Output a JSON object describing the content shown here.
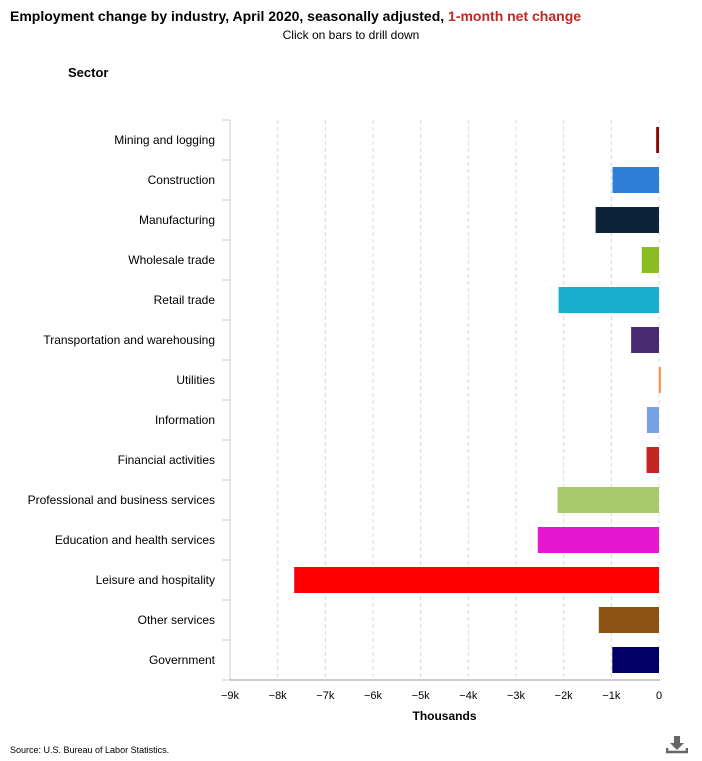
{
  "chart_data": {
    "type": "bar",
    "orientation": "horizontal",
    "title": "Employment change by industry, April 2020, seasonally adjusted,",
    "title_highlight": "1-month net change",
    "subtitle": "Click on bars to drill down",
    "ylabel": "Sector",
    "xlabel": "Thousands",
    "xlim": [
      -9000,
      0
    ],
    "xticks": [
      -9000,
      -8000,
      -7000,
      -6000,
      -5000,
      -4000,
      -3000,
      -2000,
      -1000,
      0
    ],
    "xtick_labels": [
      "−9k",
      "−8k",
      "−7k",
      "−6k",
      "−5k",
      "−4k",
      "−3k",
      "−2k",
      "−1k",
      "0"
    ],
    "grid": "vertical dashed",
    "categories": [
      "Mining and logging",
      "Construction",
      "Manufacturing",
      "Wholesale trade",
      "Retail trade",
      "Transportation and warehousing",
      "Utilities",
      "Information",
      "Financial activities",
      "Professional and business services",
      "Education and health services",
      "Leisure and hospitality",
      "Other services",
      "Government"
    ],
    "values": [
      -59,
      -975,
      -1330,
      -363,
      -2107,
      -585,
      -4,
      -254,
      -262,
      -2128,
      -2544,
      -7653,
      -1263,
      -980
    ],
    "colors": [
      "#8b0000",
      "#2f7ed8",
      "#0d233a",
      "#8bbc21",
      "#1aadce",
      "#492970",
      "#f28f43",
      "#77a1e5",
      "#c42525",
      "#a6c96a",
      "#e616d2",
      "#ff0000",
      "#8c5312",
      "#000066"
    ]
  },
  "source": "Source: U.S. Bureau of Labor Statistics.",
  "download_icon": "download-icon"
}
